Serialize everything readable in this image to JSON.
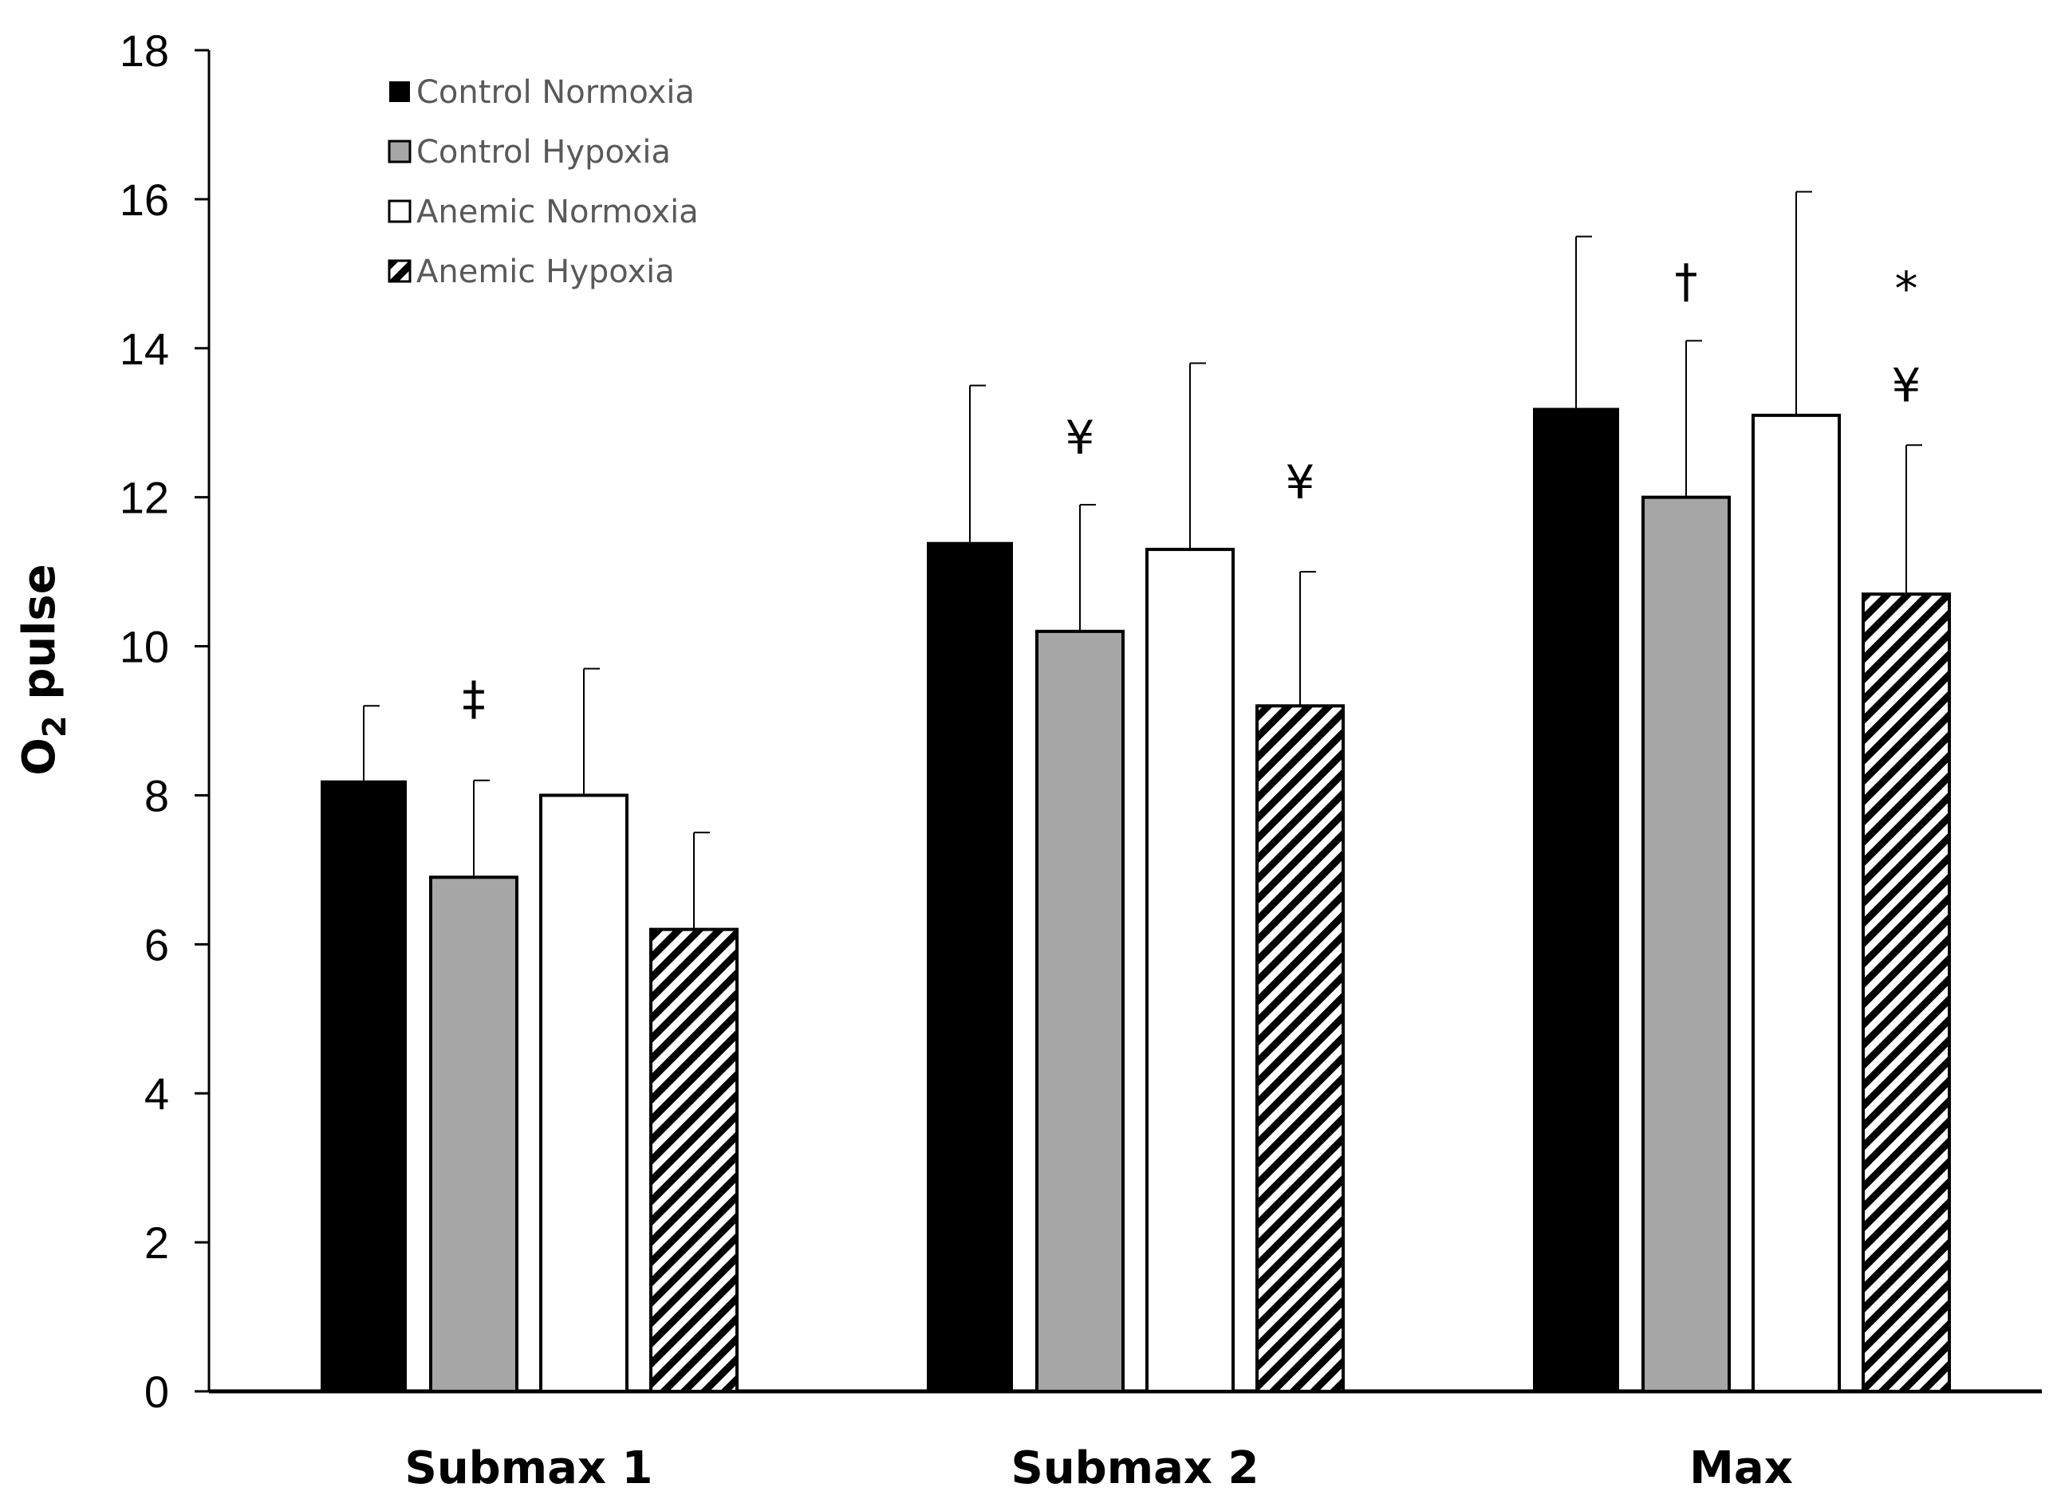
{
  "chart_data": {
    "type": "bar",
    "title": "",
    "xlabel": "",
    "ylabel": "O",
    "ylabel_subscript": "2",
    "ylabel_suffix": " pulse",
    "ylim": [
      0,
      18
    ],
    "yticks": [
      0,
      2,
      4,
      6,
      8,
      10,
      12,
      14,
      16,
      18
    ],
    "grid": false,
    "legend_position": "top-left",
    "categories": [
      "Submax 1",
      "Submax 2",
      "Max"
    ],
    "series": [
      {
        "name": "Control Normoxia",
        "fill": "black",
        "values": [
          8.2,
          11.4,
          13.2
        ],
        "errors": [
          1.0,
          2.1,
          2.3
        ]
      },
      {
        "name": "Control Hypoxia",
        "fill": "gray",
        "values": [
          6.9,
          10.2,
          12.0
        ],
        "errors": [
          1.3,
          1.7,
          2.1
        ]
      },
      {
        "name": "Anemic Normoxia",
        "fill": "white",
        "values": [
          8.0,
          11.3,
          13.1
        ],
        "errors": [
          1.7,
          2.5,
          3.0
        ]
      },
      {
        "name": "Anemic Hypoxia",
        "fill": "hatch",
        "values": [
          6.2,
          9.2,
          10.7
        ],
        "errors": [
          1.3,
          1.8,
          2.0
        ]
      }
    ],
    "annotations": [
      {
        "text": "‡",
        "category": 0,
        "series": 1,
        "value": 9.3
      },
      {
        "text": "¥",
        "category": 1,
        "series": 1,
        "value": 12.8
      },
      {
        "text": "¥",
        "category": 1,
        "series": 3,
        "value": 12.2
      },
      {
        "text": "†",
        "category": 2,
        "series": 1,
        "value": 14.9
      },
      {
        "text": "*",
        "category": 2,
        "series": 3,
        "value": 14.8
      },
      {
        "text": "¥",
        "category": 2,
        "series": 3,
        "value": 13.5
      }
    ]
  },
  "colors": {
    "black": "#000000",
    "gray": "#a6a6a6",
    "white": "#ffffff",
    "legend_text": "#595959"
  }
}
